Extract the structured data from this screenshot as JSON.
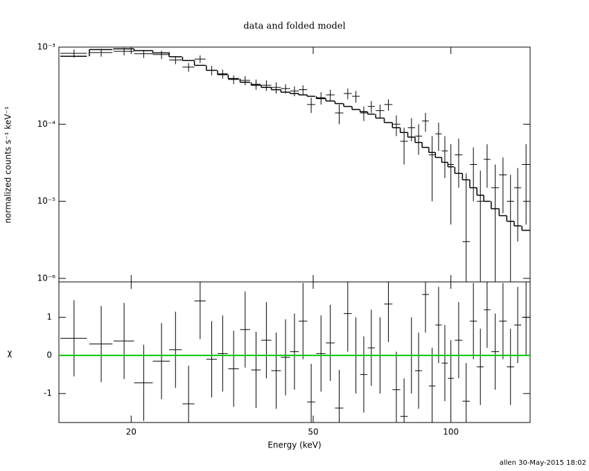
{
  "chart_data": [
    {
      "type": "spectrum",
      "title": "data and folded model",
      "ylabel": "normalized counts s⁻¹ keV⁻¹",
      "log_x": true,
      "log_y": true,
      "xlim": [
        13.9,
        149
      ],
      "ylim": [
        9e-07,
        0.001
      ],
      "yticks": [
        {
          "value": 0.001,
          "label": "10⁻³"
        },
        {
          "value": 0.0001,
          "label": "10⁻⁴"
        },
        {
          "value": 1e-05,
          "label": "10⁻⁵"
        },
        {
          "value": 1e-06,
          "label": "10⁻⁶"
        }
      ],
      "color": "#000000",
      "x": [
        15,
        17.2,
        19.3,
        21.3,
        23.3,
        25,
        26.7,
        28.3,
        30,
        31.7,
        33.5,
        35.5,
        37.5,
        39.5,
        41.5,
        43.5,
        45.5,
        47.5,
        49.5,
        52,
        54.5,
        57,
        59.5,
        62,
        64.5,
        67,
        70,
        73,
        76,
        79,
        82,
        85,
        88,
        91,
        94,
        97,
        100,
        104,
        108,
        112,
        116,
        120,
        125,
        130,
        135,
        140,
        146
      ],
      "xerr": [
        1,
        1,
        1,
        1,
        1,
        0.8,
        0.8,
        0.8,
        0.8,
        0.8,
        0.9,
        0.9,
        0.9,
        1,
        1,
        1,
        1,
        1,
        1,
        1.2,
        1.2,
        1.2,
        1.2,
        1.2,
        1.2,
        1.2,
        1.5,
        1.5,
        1.5,
        1.5,
        1.5,
        1.5,
        1.5,
        1.5,
        1.5,
        1.5,
        1.5,
        2,
        2,
        2,
        2,
        2,
        2.5,
        2.5,
        2.5,
        2.5,
        3
      ],
      "values": [
        0.00083,
        0.00085,
        0.00088,
        0.00082,
        0.0008,
        0.00068,
        0.00055,
        0.0007,
        0.0005,
        0.00045,
        0.00038,
        0.00037,
        0.00033,
        0.00032,
        0.0003,
        0.00029,
        0.00027,
        0.00028,
        0.00018,
        0.00022,
        0.00024,
        0.00014,
        0.00025,
        0.00023,
        0.00014,
        0.00017,
        0.00015,
        0.00018,
        0.0001,
        6e-05,
        9e-05,
        7e-05,
        0.00011,
        4e-05,
        7.5e-05,
        4.5e-05,
        3e-05,
        4e-05,
        3e-06,
        3e-05,
        1e-05,
        3.5e-05,
        1.5e-05,
        2.2e-05,
        1e-05,
        1.5e-05,
        3e-05
      ],
      "yerr": [
        0.0001,
        0.0001,
        0.0001,
        0.0001,
        0.0001,
        8e-05,
        7e-05,
        8e-05,
        7e-05,
        6e-05,
        5e-05,
        5e-05,
        5e-05,
        5e-05,
        5e-05,
        4e-05,
        4e-05,
        4e-05,
        4e-05,
        4e-05,
        4e-05,
        4e-05,
        4e-05,
        4e-05,
        3e-05,
        3e-05,
        3e-05,
        3e-05,
        3e-05,
        3e-05,
        3e-05,
        3e-05,
        3e-05,
        3e-05,
        3e-05,
        2.5e-05,
        2.5e-05,
        2.5e-05,
        2e-05,
        2e-05,
        1.5e-05,
        2e-05,
        1.5e-05,
        1.5e-05,
        1.2e-05,
        1.2e-05,
        2.5e-05
      ],
      "model": [
        0.00076,
        0.00093,
        0.00095,
        0.0009,
        0.00084,
        0.00075,
        0.00067,
        0.00058,
        0.0005,
        0.00044,
        0.00039,
        0.00035,
        0.00032,
        0.0003,
        0.00028,
        0.00026,
        0.00025,
        0.00024,
        0.00023,
        0.000215,
        0.0002,
        0.000185,
        0.00017,
        0.000155,
        0.000145,
        0.000135,
        0.00012,
        0.000105,
        9e-05,
        7.8e-05,
        6.8e-05,
        5.8e-05,
        5e-05,
        4.3e-05,
        3.7e-05,
        3.2e-05,
        2.8e-05,
        2.3e-05,
        1.9e-05,
        1.5e-05,
        1.2e-05,
        1e-05,
        8e-06,
        6.5e-06,
        5.5e-06,
        4.8e-06,
        4.2e-06
      ]
    },
    {
      "type": "residual",
      "ylabel": "χ",
      "xlabel": "Energy (keV)",
      "log_x": true,
      "xlim": [
        13.9,
        149
      ],
      "ylim": [
        -1.76,
        1.93
      ],
      "xticks": [
        20,
        50,
        100
      ],
      "yticks": [
        -1,
        0,
        1
      ],
      "zero_color": "#00cc00",
      "color": "#000000",
      "x": [
        15,
        17.2,
        19.3,
        21.3,
        23.3,
        25,
        26.7,
        28.3,
        30,
        31.7,
        33.5,
        35.5,
        37.5,
        39.5,
        41.5,
        43.5,
        45.5,
        47.5,
        49.5,
        52,
        54.5,
        57,
        59.5,
        62,
        64.5,
        67,
        70,
        73,
        76,
        79,
        82,
        85,
        88,
        91,
        94,
        97,
        100,
        104,
        108,
        112,
        116,
        120,
        125,
        130,
        135,
        140,
        146
      ],
      "xerr": [
        1,
        1,
        1,
        1,
        1,
        0.8,
        0.8,
        0.8,
        0.8,
        0.8,
        0.9,
        0.9,
        0.9,
        1,
        1,
        1,
        1,
        1,
        1,
        1.2,
        1.2,
        1.2,
        1.2,
        1.2,
        1.2,
        1.2,
        1.5,
        1.5,
        1.5,
        1.5,
        1.5,
        1.5,
        1.5,
        1.5,
        1.5,
        1.5,
        1.5,
        2,
        2,
        2,
        2,
        2,
        2.5,
        2.5,
        2.5,
        2.5,
        3
      ],
      "values": [
        0.45,
        0.3,
        0.38,
        -0.72,
        -0.15,
        0.15,
        -1.27,
        1.43,
        -0.1,
        0.05,
        -0.35,
        0.68,
        -0.38,
        0.4,
        -0.4,
        -0.05,
        0.1,
        0.9,
        -1.22,
        0.05,
        0.33,
        -1.38,
        1.1,
        0,
        -0.5,
        0.2,
        0,
        1.35,
        -0.9,
        -1.6,
        0,
        -0.4,
        1.6,
        -0.8,
        0.8,
        -0.2,
        -0.6,
        0.4,
        -1.2,
        0.9,
        -0.3,
        1.2,
        0.1,
        0.9,
        -0.3,
        0.8,
        1
      ],
      "yerr": [
        1,
        1,
        1,
        1,
        1,
        1,
        1,
        1,
        1,
        1,
        1,
        1,
        1,
        1,
        1,
        1,
        1,
        1,
        1,
        1,
        1,
        1,
        1,
        1,
        1,
        1,
        1,
        1,
        1,
        1,
        1,
        1,
        1,
        1,
        1,
        1,
        1,
        1,
        1,
        1,
        1,
        1,
        1,
        1,
        1,
        1,
        1
      ]
    },
    {
      "footer": "allen 30-May-2015 18:02"
    }
  ]
}
